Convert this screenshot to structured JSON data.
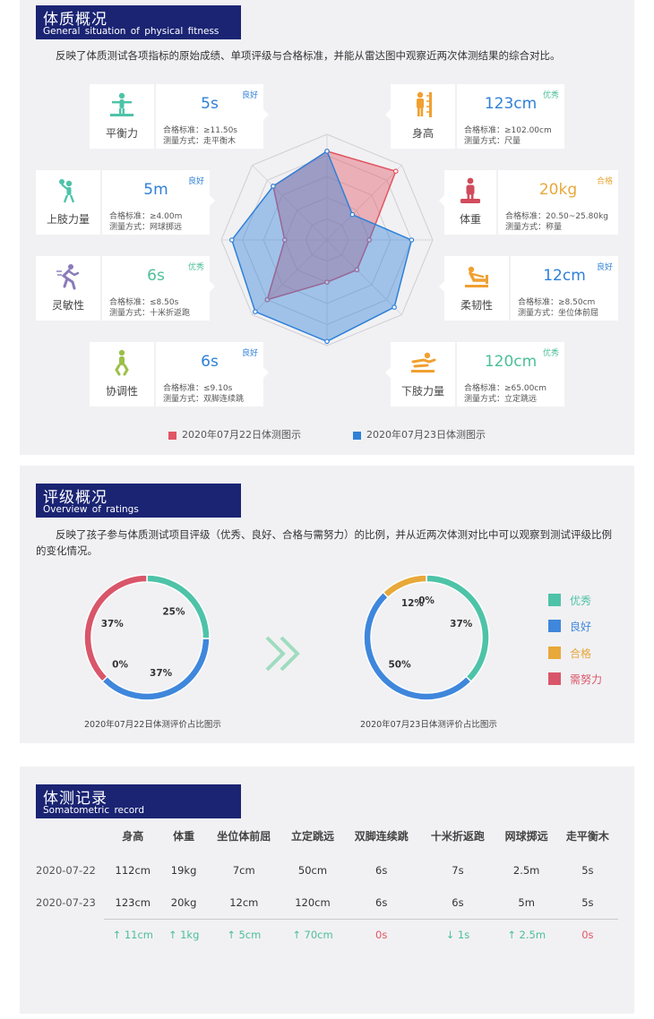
{
  "section1": {
    "title_cn": "体质概况",
    "title_en": "General situation of physical fitness",
    "description": "反映了体质测试各项指标的原始成绩、单项评级与合格标准，并能从雷达图中观察近两次体测结果的综合对比。",
    "cards": [
      {
        "id": "balance",
        "label": "平衡力",
        "value": "5s",
        "grade": "良好",
        "grade_color": "#2f80d8",
        "value_color": "#2f80d8",
        "standard": "合格标准：≥11.50s",
        "method": "测量方式：走平衡木",
        "icon": "balance-beam-icon",
        "icon_color": "#4ec3a8"
      },
      {
        "id": "height",
        "label": "身高",
        "value": "123cm",
        "grade": "优秀",
        "grade_color": "#4cbf97",
        "value_color": "#2f80d8",
        "standard": "合格标准：≥102.00cm",
        "method": "测量方式：尺量",
        "icon": "height-ruler-icon",
        "icon_color": "#f0a030"
      },
      {
        "id": "upper",
        "label": "上肢力量",
        "value": "5m",
        "grade": "良好",
        "grade_color": "#2f80d8",
        "value_color": "#2f80d8",
        "standard": "合格标准：≥4.00m",
        "method": "测量方式：网球掷远",
        "icon": "ball-throw-icon",
        "icon_color": "#4ec3a8"
      },
      {
        "id": "weight",
        "label": "体重",
        "value": "20kg",
        "grade": "合格",
        "grade_color": "#e8a83a",
        "value_color": "#e8a83a",
        "standard": "合格标准：20.50~25.80kg",
        "method": "测量方式：称量",
        "icon": "scale-icon",
        "icon_color": "#d14b5c"
      },
      {
        "id": "agility",
        "label": "灵敏性",
        "value": "6s",
        "grade": "优秀",
        "grade_color": "#4cbf97",
        "value_color": "#4cbf97",
        "standard": "合格标准：≤8.50s",
        "method": "测量方式：十米折返跑",
        "icon": "runner-icon",
        "icon_color": "#8a7bb8"
      },
      {
        "id": "flex",
        "label": "柔韧性",
        "value": "12cm",
        "grade": "良好",
        "grade_color": "#2f80d8",
        "value_color": "#2f80d8",
        "standard": "合格标准：≥8.50cm",
        "method": "测量方式：坐位体前屈",
        "icon": "sit-reach-icon",
        "icon_color": "#f0a030"
      },
      {
        "id": "coord",
        "label": "协调性",
        "value": "6s",
        "grade": "良好",
        "grade_color": "#2f80d8",
        "value_color": "#2f80d8",
        "standard": "合格标准：≤9.10s",
        "method": "测量方式：双脚连续跳",
        "icon": "jump-icon",
        "icon_color": "#9cc04a"
      },
      {
        "id": "lower",
        "label": "下肢力量",
        "value": "120cm",
        "grade": "优秀",
        "grade_color": "#4cbf97",
        "value_color": "#4cbf97",
        "standard": "合格标准：≥65.00cm",
        "method": "测量方式：立定跳远",
        "icon": "long-jump-icon",
        "icon_color": "#f0a030"
      }
    ],
    "radar": {
      "axes": [
        "身高",
        "体重",
        "柔韧性",
        "下肢力量",
        "协调性",
        "灵敏性",
        "上肢力量",
        "平衡力"
      ],
      "max": 5,
      "series": [
        {
          "name": "2020年07月22日体测图示",
          "color": "#e25563",
          "values": [
            4.2,
            4.6,
            2.0,
            2.0,
            2.0,
            4.0,
            2.0,
            3.6
          ]
        },
        {
          "name": "2020年07月23日体测图示",
          "color": "#2f80d8",
          "values": [
            4.2,
            1.7,
            4.0,
            4.5,
            4.8,
            4.8,
            4.5,
            3.6
          ]
        }
      ]
    }
  },
  "section2": {
    "title_cn": "评级概况",
    "title_en": "Overview of ratings",
    "description": "反映了孩子参与体质测试项目评级（优秀、良好、合格与需努力）的比例，并从近两次体测对比中可以观察到测试评级比例的变化情况。",
    "legend": [
      {
        "label": "优秀",
        "color": "#4ec3a8"
      },
      {
        "label": "良好",
        "color": "#3f87dc"
      },
      {
        "label": "合格",
        "color": "#e8a83a"
      },
      {
        "label": "需努力",
        "color": "#d9566a"
      }
    ],
    "chart_data": [
      {
        "type": "pie",
        "title": "2020年07月22日体测评价占比图示",
        "categories": [
          "优秀",
          "良好",
          "合格",
          "需努力"
        ],
        "values": [
          25,
          37,
          0,
          37
        ],
        "labels": [
          "25%",
          "37%",
          "0%",
          "37%"
        ]
      },
      {
        "type": "pie",
        "title": "2020年07月23日体测评价占比图示",
        "categories": [
          "优秀",
          "良好",
          "合格",
          "需努力"
        ],
        "values": [
          37,
          50,
          12,
          0
        ],
        "labels": [
          "37%",
          "50%",
          "12%",
          "0%"
        ]
      }
    ]
  },
  "section3": {
    "title_cn": "体测记录",
    "title_en": "Somatometric record",
    "columns": [
      "身高",
      "体重",
      "坐位体前屈",
      "立定跳远",
      "双脚连续跳",
      "十米折返跑",
      "网球掷远",
      "走平衡木"
    ],
    "rows": [
      {
        "date": "2020-07-22",
        "values": [
          "112cm",
          "19kg",
          "7cm",
          "50cm",
          "6s",
          "7s",
          "2.5m",
          "5s"
        ]
      },
      {
        "date": "2020-07-23",
        "values": [
          "123cm",
          "20kg",
          "12cm",
          "120cm",
          "6s",
          "6s",
          "5m",
          "5s"
        ]
      }
    ],
    "diff": [
      {
        "text": "↑ 11cm",
        "color": "green"
      },
      {
        "text": "↑ 1kg",
        "color": "green"
      },
      {
        "text": "↑ 5cm",
        "color": "green"
      },
      {
        "text": "↑ 70cm",
        "color": "green"
      },
      {
        "text": "0s",
        "color": "red"
      },
      {
        "text": "↓ 1s",
        "color": "green"
      },
      {
        "text": "↑ 2.5m",
        "color": "green"
      },
      {
        "text": "0s",
        "color": "red"
      }
    ]
  }
}
